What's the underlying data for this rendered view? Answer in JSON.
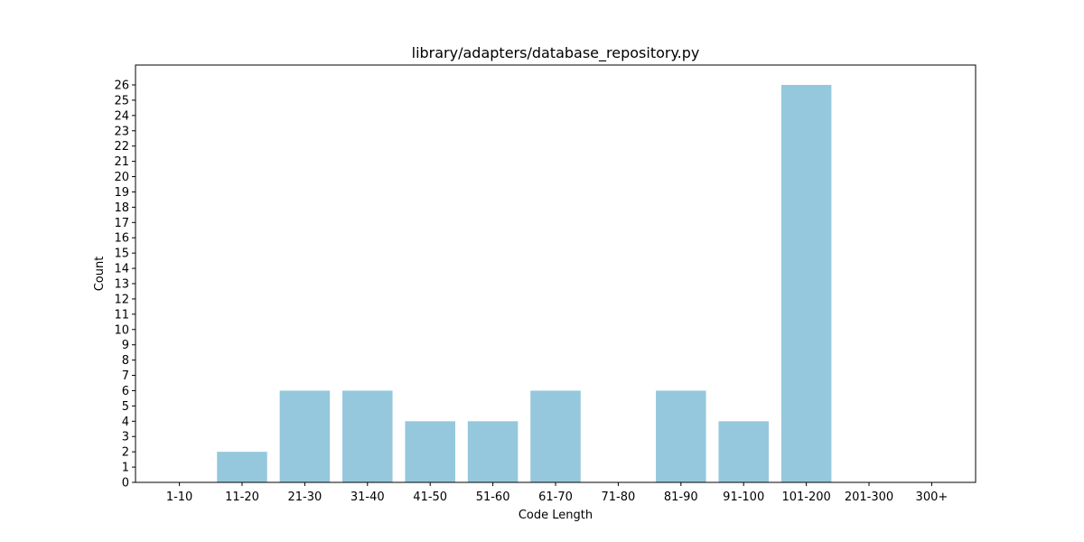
{
  "chart_data": {
    "type": "bar",
    "title": "library/adapters/database_repository.py",
    "xlabel": "Code Length",
    "ylabel": "Count",
    "categories": [
      "1-10",
      "11-20",
      "21-30",
      "31-40",
      "41-50",
      "51-60",
      "61-70",
      "71-80",
      "81-90",
      "91-100",
      "101-200",
      "201-300",
      "300+"
    ],
    "values": [
      0,
      2,
      6,
      6,
      4,
      4,
      6,
      0,
      6,
      4,
      26,
      0,
      0
    ],
    "ylim": [
      0,
      27.3
    ],
    "yticks": [
      0,
      1,
      2,
      3,
      4,
      5,
      6,
      7,
      8,
      9,
      10,
      11,
      12,
      13,
      14,
      15,
      16,
      17,
      18,
      19,
      20,
      21,
      22,
      23,
      24,
      25,
      26
    ],
    "grid": false,
    "bar_color": "#95c8dc"
  }
}
